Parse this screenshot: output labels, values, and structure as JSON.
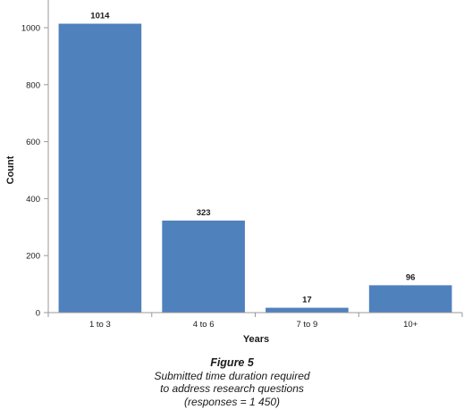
{
  "chart_data": {
    "type": "bar",
    "categories": [
      "1 to 3",
      "4 to 6",
      "7 to 9",
      "10+"
    ],
    "values": [
      1014,
      323,
      17,
      96
    ],
    "data_labels": [
      "1014",
      "323",
      "17",
      "96"
    ],
    "xlabel": "Years",
    "ylabel": "Count",
    "ylim": [
      0,
      1000
    ],
    "yticks": [
      0,
      200,
      400,
      600,
      800,
      1000
    ],
    "grid": false,
    "legend": "none",
    "bar_color": "#4f81bd"
  },
  "caption": {
    "figure_label": "Figure 5",
    "line1": "Submitted time duration required",
    "line2": "to address research questions",
    "line3": "(responses = 1 450)"
  }
}
